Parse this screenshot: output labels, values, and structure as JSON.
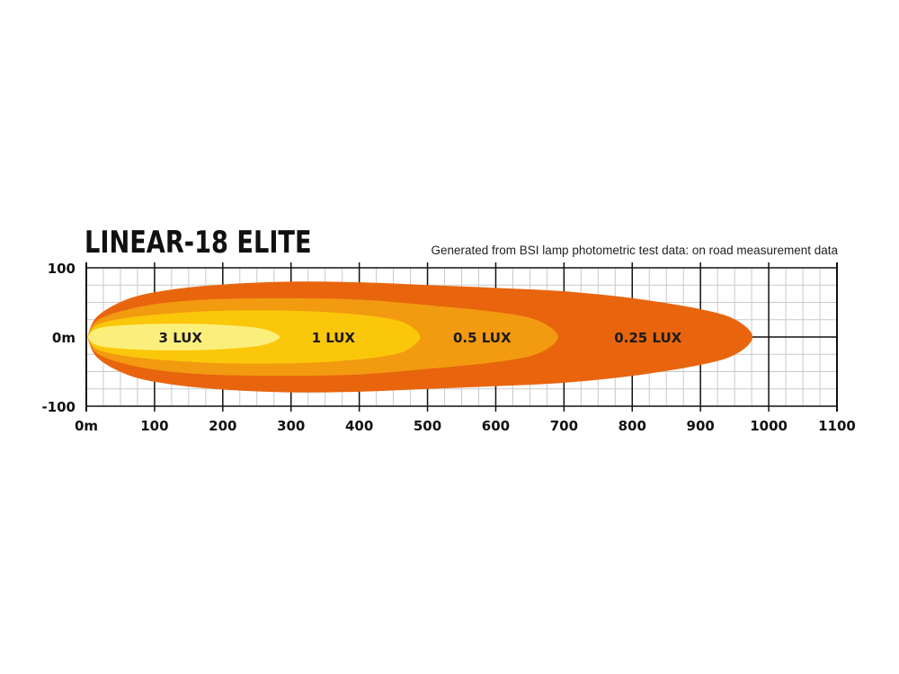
{
  "header": {
    "title": "LINEAR-18 ELITE",
    "subtitle": "Generated from BSI lamp photometric test data: on road measurement data"
  },
  "chart_data": {
    "type": "area",
    "title": "LINEAR-18 ELITE",
    "subtitle": "Generated from BSI lamp photometric test data: on road measurement data",
    "xlabel": "",
    "ylabel": "",
    "xlim": [
      0,
      1100
    ],
    "ylim": [
      -100,
      100
    ],
    "x_tick_labels": [
      "0m",
      "100",
      "200",
      "300",
      "400",
      "500",
      "600",
      "700",
      "800",
      "900",
      "1000",
      "1100"
    ],
    "y_tick_labels": [
      "100",
      "0m",
      "-100"
    ],
    "grid": true,
    "centerline_after_beam": true,
    "series": [
      {
        "name": "0.25 LUX",
        "color": "#e8650e",
        "max_distance": 975,
        "half_width": [
          [
            0,
            0
          ],
          [
            15,
            30
          ],
          [
            60,
            55
          ],
          [
            120,
            68
          ],
          [
            200,
            76
          ],
          [
            300,
            80
          ],
          [
            400,
            79
          ],
          [
            500,
            75
          ],
          [
            600,
            71
          ],
          [
            700,
            66
          ],
          [
            800,
            56
          ],
          [
            900,
            40
          ],
          [
            950,
            25
          ],
          [
            975,
            0
          ]
        ]
      },
      {
        "name": "0.5 LUX",
        "color": "#f29a10",
        "max_distance": 690,
        "half_width": [
          [
            0,
            0
          ],
          [
            15,
            24
          ],
          [
            60,
            40
          ],
          [
            120,
            50
          ],
          [
            200,
            55
          ],
          [
            300,
            56
          ],
          [
            400,
            54
          ],
          [
            500,
            46
          ],
          [
            600,
            36
          ],
          [
            660,
            24
          ],
          [
            690,
            0
          ]
        ]
      },
      {
        "name": "1 LUX",
        "color": "#fbc70a",
        "max_distance": 488,
        "half_width": [
          [
            0,
            0
          ],
          [
            15,
            18
          ],
          [
            60,
            28
          ],
          [
            120,
            34
          ],
          [
            200,
            38
          ],
          [
            300,
            38
          ],
          [
            380,
            34
          ],
          [
            440,
            27
          ],
          [
            470,
            18
          ],
          [
            488,
            0
          ]
        ]
      },
      {
        "name": "3 LUX",
        "color": "#fbef7c",
        "max_distance": 282,
        "half_width": [
          [
            0,
            0
          ],
          [
            12,
            11
          ],
          [
            40,
            16
          ],
          [
            100,
            19
          ],
          [
            160,
            19
          ],
          [
            220,
            16
          ],
          [
            260,
            11
          ],
          [
            282,
            0
          ]
        ]
      }
    ]
  }
}
